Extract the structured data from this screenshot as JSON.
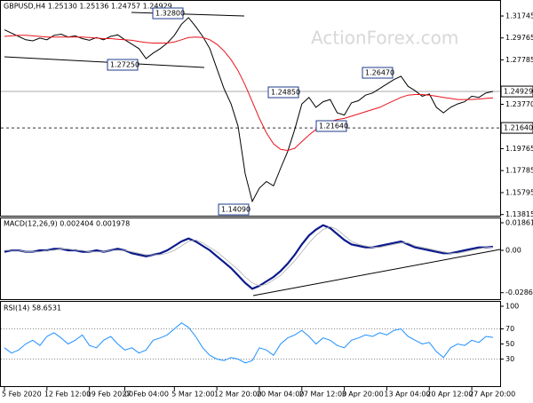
{
  "chart_data": [
    {
      "type": "line",
      "title": "GBPUSD,H4  1.25130 1.25136 1.24757 1.24929",
      "ylim": [
        1.1355,
        1.3319
      ],
      "yticks": [
        1.31745,
        1.29765,
        1.27785,
        {
          "value": 1.2377,
          "label": "1.23770"
        },
        1.19765,
        1.17785,
        1.15795,
        1.13815
      ],
      "xlim": [
        0,
        69
      ],
      "last_price": 1.24929,
      "level": {
        "value": 1.2164,
        "label": "1.21640"
      },
      "annotations": [
        "1.32800",
        "1.27250",
        "1.24850",
        "1.26470",
        "1.21640",
        "1.14090"
      ],
      "watermark": "ActionForex.com",
      "series": [
        {
          "name": "GBPUSD",
          "color": "#000000",
          "values": [
            1.305,
            1.302,
            1.299,
            1.296,
            1.295,
            1.2975,
            1.296,
            1.3,
            1.301,
            1.2985,
            1.2995,
            1.297,
            1.2955,
            1.298,
            1.296,
            1.299,
            1.3005,
            1.296,
            1.292,
            1.288,
            1.279,
            1.284,
            1.288,
            1.293,
            1.3,
            1.31,
            1.316,
            1.308,
            1.299,
            1.288,
            1.27,
            1.252,
            1.238,
            1.218,
            1.175,
            1.15,
            1.162,
            1.168,
            1.164,
            1.18,
            1.195,
            1.215,
            1.238,
            1.244,
            1.235,
            1.24,
            1.242,
            1.23,
            1.228,
            1.239,
            1.241,
            1.246,
            1.248,
            1.252,
            1.256,
            1.26,
            1.263,
            1.254,
            1.25,
            1.245,
            1.247,
            1.235,
            1.23,
            1.235,
            1.238,
            1.24,
            1.245,
            1.244,
            1.248,
            1.2493
          ]
        },
        {
          "name": "MA",
          "color": "#e8141c",
          "values": [
            1.299,
            1.2995,
            1.3,
            1.3,
            1.2995,
            1.299,
            1.2985,
            1.2985,
            1.2985,
            1.2985,
            1.2985,
            1.2985,
            1.298,
            1.2975,
            1.297,
            1.297,
            1.2965,
            1.296,
            1.2955,
            1.2945,
            1.2935,
            1.293,
            1.293,
            1.293,
            1.294,
            1.296,
            1.298,
            1.2985,
            1.298,
            1.296,
            1.292,
            1.286,
            1.278,
            1.268,
            1.255,
            1.24,
            1.225,
            1.212,
            1.202,
            1.197,
            1.196,
            1.198,
            1.204,
            1.21,
            1.215,
            1.219,
            1.222,
            1.224,
            1.225,
            1.227,
            1.229,
            1.231,
            1.233,
            1.235,
            1.238,
            1.241,
            1.244,
            1.246,
            1.2465,
            1.2465,
            1.246,
            1.245,
            1.244,
            1.243,
            1.242,
            1.242,
            1.242,
            1.2425,
            1.243,
            1.2435
          ]
        }
      ]
    },
    {
      "type": "line",
      "title": "MACD(12,26,9) 0.002404 0.001978",
      "ylim": [
        -0.0336,
        0.0216
      ],
      "yticks": [
        0.018615,
        {
          "value": 0,
          "label": "0.00"
        },
        -0.028631
      ],
      "xlim": [
        0,
        69
      ],
      "series": [
        {
          "name": "MACD",
          "color": "#0b1a8c",
          "values": [
            -0.001,
            0,
            0,
            -0.001,
            -0.001,
            0,
            0,
            0.001,
            0.001,
            0,
            0,
            -0.001,
            -0.001,
            0,
            -0.001,
            0,
            0.001,
            0,
            -0.002,
            -0.003,
            -0.004,
            -0.003,
            -0.002,
            0,
            0.003,
            0.006,
            0.008,
            0.006,
            0.003,
            0,
            -0.004,
            -0.008,
            -0.012,
            -0.017,
            -0.022,
            -0.026,
            -0.024,
            -0.021,
            -0.018,
            -0.014,
            -0.009,
            -0.003,
            0.004,
            0.01,
            0.014,
            0.017,
            0.015,
            0.011,
            0.007,
            0.004,
            0.003,
            0.002,
            0.002,
            0.003,
            0.004,
            0.005,
            0.006,
            0.004,
            0.002,
            0.001,
            0,
            -0.001,
            -0.002,
            -0.002,
            -0.001,
            0,
            0.001,
            0.002,
            0.002,
            0.0024
          ]
        },
        {
          "name": "Signal",
          "color": "#b0b0b0",
          "values": [
            0,
            0,
            0,
            -0.001,
            -0.001,
            -0.001,
            0,
            0,
            0.001,
            0.001,
            0,
            0,
            -0.001,
            -0.001,
            -0.001,
            0,
            0,
            0,
            -0.001,
            -0.002,
            -0.003,
            -0.003,
            -0.003,
            -0.002,
            0,
            0.003,
            0.006,
            0.007,
            0.005,
            0.002,
            -0.001,
            -0.005,
            -0.009,
            -0.013,
            -0.018,
            -0.022,
            -0.024,
            -0.023,
            -0.02,
            -0.017,
            -0.012,
            -0.007,
            -0.001,
            0.005,
            0.01,
            0.014,
            0.016,
            0.014,
            0.01,
            0.006,
            0.004,
            0.003,
            0.002,
            0.002,
            0.003,
            0.004,
            0.005,
            0.005,
            0.003,
            0.002,
            0.001,
            0,
            -0.001,
            -0.002,
            -0.002,
            -0.001,
            0,
            0.001,
            0.002,
            0.002
          ]
        }
      ]
    },
    {
      "type": "line",
      "title": "RSI(14) 58.6531",
      "ylim": [
        0,
        100
      ],
      "yticks": [
        100,
        70,
        50,
        30
      ],
      "levels": [
        70,
        30
      ],
      "xlim": [
        0,
        69
      ],
      "xticks": [
        {
          "value": 0,
          "label": "5 Feb 2020"
        },
        {
          "value": 6,
          "label": "12 Feb 12:00"
        },
        {
          "value": 12,
          "label": "19 Feb 20:00"
        },
        {
          "value": 17,
          "label": "27 Feb 04:00"
        },
        {
          "value": 24,
          "label": "5 Mar 12:00"
        },
        {
          "value": 30,
          "label": "12 Mar 20:00"
        },
        {
          "value": 36,
          "label": "20 Mar 04:00"
        },
        {
          "value": 42,
          "label": "27 Mar 12:00"
        },
        {
          "value": 48,
          "label": "3 Apr 20:00"
        },
        {
          "value": 54,
          "label": "13 Apr 04:00"
        },
        {
          "value": 60,
          "label": "20 Apr 12:00"
        },
        {
          "value": 66,
          "label": "27 Apr 20:00"
        }
      ],
      "series": [
        {
          "name": "RSI",
          "color": "#1e90ff",
          "values": [
            45,
            38,
            42,
            50,
            55,
            48,
            60,
            65,
            58,
            50,
            55,
            62,
            48,
            45,
            55,
            60,
            50,
            42,
            45,
            38,
            42,
            55,
            58,
            62,
            70,
            78,
            72,
            60,
            45,
            35,
            30,
            28,
            32,
            30,
            25,
            28,
            45,
            42,
            35,
            50,
            58,
            62,
            68,
            60,
            50,
            58,
            55,
            48,
            45,
            55,
            58,
            62,
            60,
            65,
            62,
            68,
            70,
            60,
            55,
            50,
            52,
            40,
            32,
            45,
            50,
            48,
            55,
            52,
            60,
            58.65
          ]
        }
      ]
    }
  ]
}
